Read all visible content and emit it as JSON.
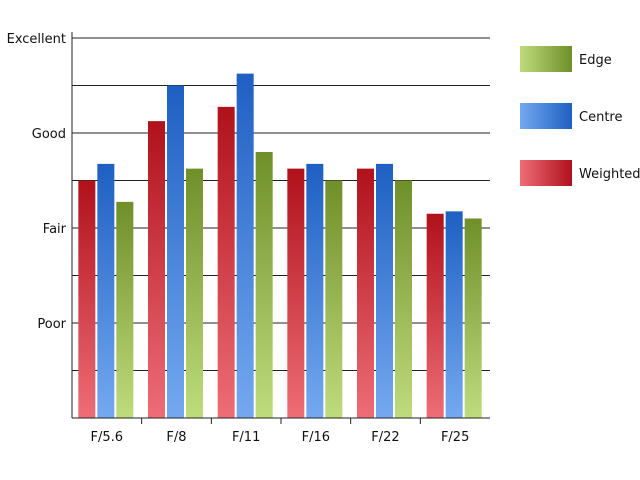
{
  "chart_data": {
    "type": "bar",
    "title": "",
    "xlabel": "",
    "ylabel": "",
    "categories": [
      "F/5.6",
      "F/8",
      "F/11",
      "F/16",
      "F/22",
      "F/25"
    ],
    "y_ticks": [
      "",
      "Poor",
      "",
      "Fair",
      "",
      "Good",
      "",
      "Excellent"
    ],
    "ylim": [
      0,
      8
    ],
    "grid": true,
    "legend_position": "right",
    "series": [
      {
        "name": "Weighted",
        "values": [
          5.0,
          6.25,
          6.55,
          5.25,
          5.25,
          4.3
        ],
        "color_top": "#b0111b",
        "color_bottom": "#ee6d76"
      },
      {
        "name": "Centre",
        "values": [
          5.35,
          7.0,
          7.25,
          5.35,
          5.35,
          4.35
        ],
        "color_top": "#1e5fc2",
        "color_bottom": "#74a9f0"
      },
      {
        "name": "Edge",
        "values": [
          4.55,
          5.25,
          5.6,
          5.0,
          5.0,
          4.2
        ],
        "color_top": "#6f8f2a",
        "color_bottom": "#bfdc7c"
      }
    ],
    "legend_order": [
      "Edge",
      "Centre",
      "Weighted"
    ]
  }
}
